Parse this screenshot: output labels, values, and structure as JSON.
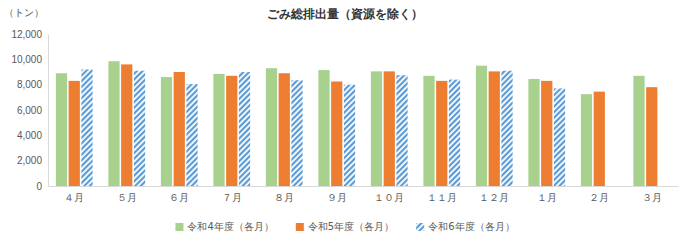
{
  "chart_data": {
    "type": "bar",
    "title": "ごみ総排出量（資源を除く）",
    "y_label": "（トン）",
    "categories": [
      "４月",
      "５月",
      "６月",
      "７月",
      "８月",
      "９月",
      "１０月",
      "１１月",
      "１２月",
      "１月",
      "２月",
      "３月"
    ],
    "series": [
      {
        "name": "令和4年度（各月）",
        "color": "#a9d18e",
        "values": [
          8900,
          9850,
          8600,
          8850,
          9300,
          9150,
          9050,
          8700,
          9500,
          8450,
          7250,
          8700
        ]
      },
      {
        "name": "令和5年度（各月）",
        "color": "#ed7d31",
        "values": [
          8300,
          9600,
          9000,
          8700,
          8900,
          8250,
          9050,
          8300,
          9050,
          8300,
          7450,
          7800
        ]
      },
      {
        "name": "令和6年度（各月）",
        "color": "#5b9bd5",
        "marker": "hatch",
        "values": [
          9200,
          9100,
          8050,
          9000,
          8350,
          8000,
          8750,
          8400,
          9100,
          7700,
          null,
          null
        ]
      }
    ],
    "ylim": [
      0,
      12000
    ],
    "yticks": [
      0,
      {
        "value": 2000,
        "label": "2,000"
      },
      {
        "value": 4000,
        "label": "4,000"
      },
      {
        "value": 6000,
        "label": "6,000"
      },
      {
        "value": 8000,
        "label": "8,000"
      },
      {
        "value": 10000,
        "label": "10,000"
      },
      {
        "value": 12000,
        "label": "12,000"
      }
    ],
    "grid": false,
    "legend": "bottom"
  }
}
